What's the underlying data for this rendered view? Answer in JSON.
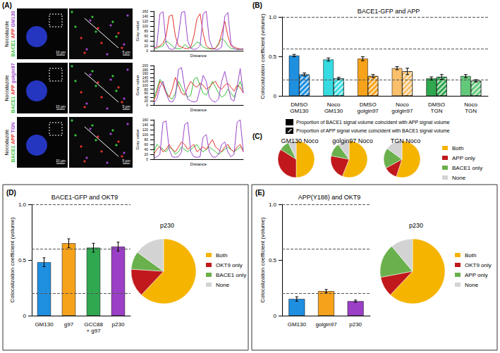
{
  "panel_labels": [
    "(A)",
    "(B)",
    "(C)",
    "(D)",
    "(E)"
  ],
  "images": {
    "treatment": "Nocodazole",
    "scale_bars": [
      "10 µm",
      "5 µm"
    ],
    "rows": [
      [
        {
          "name": "BACE1",
          "color": "#35c23a"
        },
        {
          "name": "APP",
          "color": "#e5332a"
        },
        {
          "name": "GM130",
          "color": "#9b45c9"
        }
      ],
      [
        {
          "name": "BACE1",
          "color": "#35c23a"
        },
        {
          "name": "APP",
          "color": "#e5332a"
        },
        {
          "name": "golgin97",
          "color": "#9b45c9"
        }
      ],
      [
        {
          "name": "BACE1",
          "color": "#35c23a"
        },
        {
          "name": "APP",
          "color": "#e5332a"
        },
        {
          "name": "TGN",
          "color": "#9b45c9"
        }
      ]
    ]
  },
  "chart_data": [
    {
      "type": "line",
      "x_label": "Distance",
      "y_label": "Gray value",
      "tick_labels": "y",
      "x": [
        0,
        1,
        2,
        3,
        4,
        5,
        6,
        7,
        8,
        9,
        10,
        11,
        12,
        13,
        14,
        15,
        16,
        17,
        18,
        19,
        20,
        21,
        22,
        23,
        24,
        25,
        26,
        27,
        28,
        29
      ],
      "xlim": [
        0,
        29
      ],
      "ylim": [
        0,
        160
      ],
      "yticks": [
        0,
        20,
        40,
        60,
        80,
        100,
        120,
        140,
        160
      ],
      "series": [
        {
          "color": "#35c23a",
          "values": [
            5,
            10,
            15,
            20,
            40,
            30,
            20,
            10,
            8,
            10,
            25,
            15,
            10,
            20,
            35,
            30,
            15,
            10,
            8,
            6,
            10,
            30,
            50,
            40,
            20,
            10,
            8,
            6,
            5,
            5
          ]
        },
        {
          "color": "#e5332a",
          "values": [
            10,
            15,
            20,
            30,
            60,
            140,
            145,
            60,
            20,
            15,
            10,
            8,
            15,
            60,
            130,
            150,
            70,
            20,
            10,
            8,
            10,
            25,
            70,
            120,
            60,
            20,
            15,
            10,
            8,
            5
          ]
        },
        {
          "color": "#9b45c9",
          "values": [
            5,
            20,
            150,
            158,
            30,
            8,
            5,
            10,
            60,
            155,
            160,
            40,
            10,
            5,
            8,
            20,
            150,
            160,
            45,
            10,
            5,
            6,
            15,
            140,
            155,
            30,
            8,
            5,
            5,
            10
          ]
        }
      ]
    },
    {
      "type": "line",
      "x_label": "Distance",
      "y_label": "Gray value",
      "tick_labels": "y",
      "x": [
        0,
        1,
        2,
        3,
        4,
        5,
        6,
        7,
        8,
        9,
        10,
        11,
        12,
        13,
        14,
        15,
        16,
        17,
        18,
        19,
        20,
        21,
        22,
        23,
        24,
        25,
        26,
        27,
        28,
        29
      ],
      "xlim": [
        0,
        29
      ],
      "ylim": [
        0,
        200
      ],
      "yticks": [
        0,
        20,
        40,
        60,
        80,
        100,
        120,
        140,
        160,
        180,
        200
      ],
      "series": [
        {
          "color": "#35c23a",
          "values": [
            30,
            80,
            130,
            110,
            70,
            40,
            30,
            60,
            120,
            90,
            60,
            40,
            50,
            130,
            140,
            100,
            60,
            50,
            80,
            120,
            90,
            60,
            40,
            50,
            80,
            60,
            40,
            80,
            120,
            70
          ]
        },
        {
          "color": "#e5332a",
          "values": [
            20,
            60,
            120,
            100,
            60,
            40,
            80,
            140,
            100,
            60,
            50,
            90,
            120,
            100,
            90,
            110,
            100,
            80,
            90,
            110,
            120,
            90,
            80,
            100,
            110,
            90,
            70,
            100,
            90,
            60
          ]
        },
        {
          "color": "#9b45c9",
          "values": [
            10,
            30,
            90,
            120,
            60,
            20,
            15,
            40,
            180,
            190,
            90,
            30,
            20,
            15,
            20,
            80,
            150,
            120,
            40,
            20,
            15,
            30,
            120,
            170,
            100,
            30,
            20,
            90,
            185,
            60
          ]
        }
      ]
    },
    {
      "type": "line",
      "x_label": "Distance",
      "y_label": "Gray value",
      "tick_labels": "y",
      "x": [
        0,
        1,
        2,
        3,
        4,
        5,
        6,
        7,
        8,
        9,
        10,
        11,
        12,
        13,
        14,
        15,
        16,
        17,
        18,
        19,
        20,
        21,
        22,
        23,
        24,
        25,
        26,
        27,
        28,
        29
      ],
      "xlim": [
        0,
        29
      ],
      "ylim": [
        0,
        160
      ],
      "yticks": [
        0,
        20,
        40,
        60,
        80,
        100,
        120,
        140,
        160
      ],
      "series": [
        {
          "color": "#35c23a",
          "values": [
            30,
            60,
            50,
            40,
            30,
            50,
            40,
            20,
            30,
            50,
            40,
            30,
            40,
            50,
            60,
            40,
            30,
            40,
            50,
            40,
            30,
            20,
            30,
            40,
            50,
            40,
            30,
            40,
            50,
            40
          ]
        },
        {
          "color": "#e5332a",
          "values": [
            20,
            40,
            50,
            30,
            40,
            60,
            40,
            30,
            50,
            70,
            60,
            40,
            50,
            60,
            30,
            40,
            50,
            40,
            60,
            80,
            50,
            40,
            30,
            50,
            60,
            40,
            30,
            50,
            60,
            30
          ]
        },
        {
          "color": "#9b45c9",
          "values": [
            5,
            10,
            20,
            150,
            155,
            40,
            10,
            8,
            10,
            30,
            140,
            150,
            30,
            10,
            8,
            10,
            90,
            100,
            30,
            10,
            8,
            20,
            60,
            70,
            30,
            10,
            20,
            150,
            160,
            30
          ]
        }
      ]
    },
    {
      "type": "bar",
      "title": "BACE1-GFP and APP",
      "y_label": "Colocalization coefficient (volume)",
      "categories": [
        "DMSO\nGM130",
        "Noco\nGM130",
        "DMSO\ngolgin97",
        "Noco\ngolgin97",
        "DMSO\nTGN",
        "Noco\nTGN"
      ],
      "colors": [
        "#1f8fe0",
        "#35dbe0",
        "#f7a21b",
        "#f9bf6a",
        "#2fa84f",
        "#63c97a"
      ],
      "ylim": [
        0,
        1
      ],
      "yticks": [
        0,
        0.5,
        {
          "value": 1,
          "label": "1.0"
        }
      ],
      "reference_lines": [
        0.2,
        0.6,
        1
      ],
      "legend": "bottom",
      "series": [
        {
          "name": "Proportion of BACE1 signal volume coincident with APP signal volume",
          "color": "#000000",
          "values": [
            0.51,
            0.46,
            0.47,
            0.35,
            0.22,
            0.25
          ],
          "errors": [
            0.015,
            0.02,
            0.025,
            0.02,
            0.02,
            0.02
          ]
        },
        {
          "name": "Proportion of APP signal volume coincident with BACE1 signal volume",
          "color": "#000000",
          "values": [
            0.27,
            0.22,
            0.25,
            0.31,
            0.24,
            0.19
          ],
          "errors": [
            0.02,
            0.015,
            0.02,
            0.04,
            0.03,
            0.015
          ]
        }
      ]
    },
    {
      "type": "pie",
      "title": "GM130 Noco",
      "categories": [
        "Both",
        "APP only",
        "BACE1 only",
        "None"
      ],
      "values": [
        50,
        34,
        9,
        7
      ],
      "colors": [
        "#f5b400",
        "#c0181c",
        "#6ab04c",
        "#d3d3d3"
      ]
    },
    {
      "type": "pie",
      "title": "golgin97 Noco",
      "categories": [
        "Both",
        "APP only",
        "BACE1 only",
        "None"
      ],
      "values": [
        56,
        22,
        12,
        10
      ],
      "colors": [
        "#f5b400",
        "#c0181c",
        "#6ab04c",
        "#d3d3d3"
      ]
    },
    {
      "type": "pie",
      "title": "TGN Noco",
      "categories": [
        "Both",
        "APP only",
        "BACE1 only",
        "None"
      ],
      "values": [
        55,
        12,
        18,
        15
      ],
      "colors": [
        "#f5b400",
        "#c0181c",
        "#6ab04c",
        "#d3d3d3"
      ],
      "legend": "right"
    },
    {
      "type": "bar",
      "title": "BACE1-GFP and OKT9",
      "y_label": "Colocalization coefficient (volume)",
      "categories": [
        "GM130",
        "g97",
        "GCC88\n+ g97",
        "p230"
      ],
      "colors": [
        "#1f8fe0",
        "#f7a21b",
        "#2fa84f",
        "#9b3fc6"
      ],
      "ylim": [
        0,
        1
      ],
      "yticks": [
        0,
        0.5,
        {
          "value": 1,
          "label": "1.0"
        }
      ],
      "reference_lines": [
        0.2,
        0.6,
        1
      ],
      "series": [
        {
          "values": [
            0.48,
            0.65,
            0.61,
            0.62
          ],
          "errors": [
            0.04,
            0.04,
            0.04,
            0.04
          ]
        }
      ]
    },
    {
      "type": "pie",
      "title": "p230",
      "categories": [
        "Both",
        "OKT9 only",
        "BACE1 only",
        "None"
      ],
      "values": [
        62,
        14,
        9,
        15
      ],
      "colors": [
        "#f5b400",
        "#c0181c",
        "#6ab04c",
        "#d3d3d3"
      ],
      "legend": "right"
    },
    {
      "type": "bar",
      "title": "APP(Y188) and OKT9",
      "y_label": "Colocalization coefficient (volume)",
      "categories": [
        "GM130",
        "golgin97",
        "p230"
      ],
      "colors": [
        "#1f8fe0",
        "#f7a21b",
        "#9b3fc6"
      ],
      "ylim": [
        0,
        1
      ],
      "yticks": [
        0,
        0.5,
        {
          "value": 1,
          "label": "1.0"
        }
      ],
      "reference_lines": [
        0.2,
        0.6,
        1
      ],
      "series": [
        {
          "values": [
            0.15,
            0.22,
            0.13
          ],
          "errors": [
            0.02,
            0.015,
            0.01
          ]
        }
      ]
    },
    {
      "type": "pie",
      "title": "p230",
      "categories": [
        "Both",
        "OKT9 only",
        "APP only",
        "None"
      ],
      "values": [
        62,
        10,
        17,
        11
      ],
      "colors": [
        "#f5b400",
        "#c0181c",
        "#6ab04c",
        "#d3d3d3"
      ],
      "legend": "right"
    }
  ]
}
